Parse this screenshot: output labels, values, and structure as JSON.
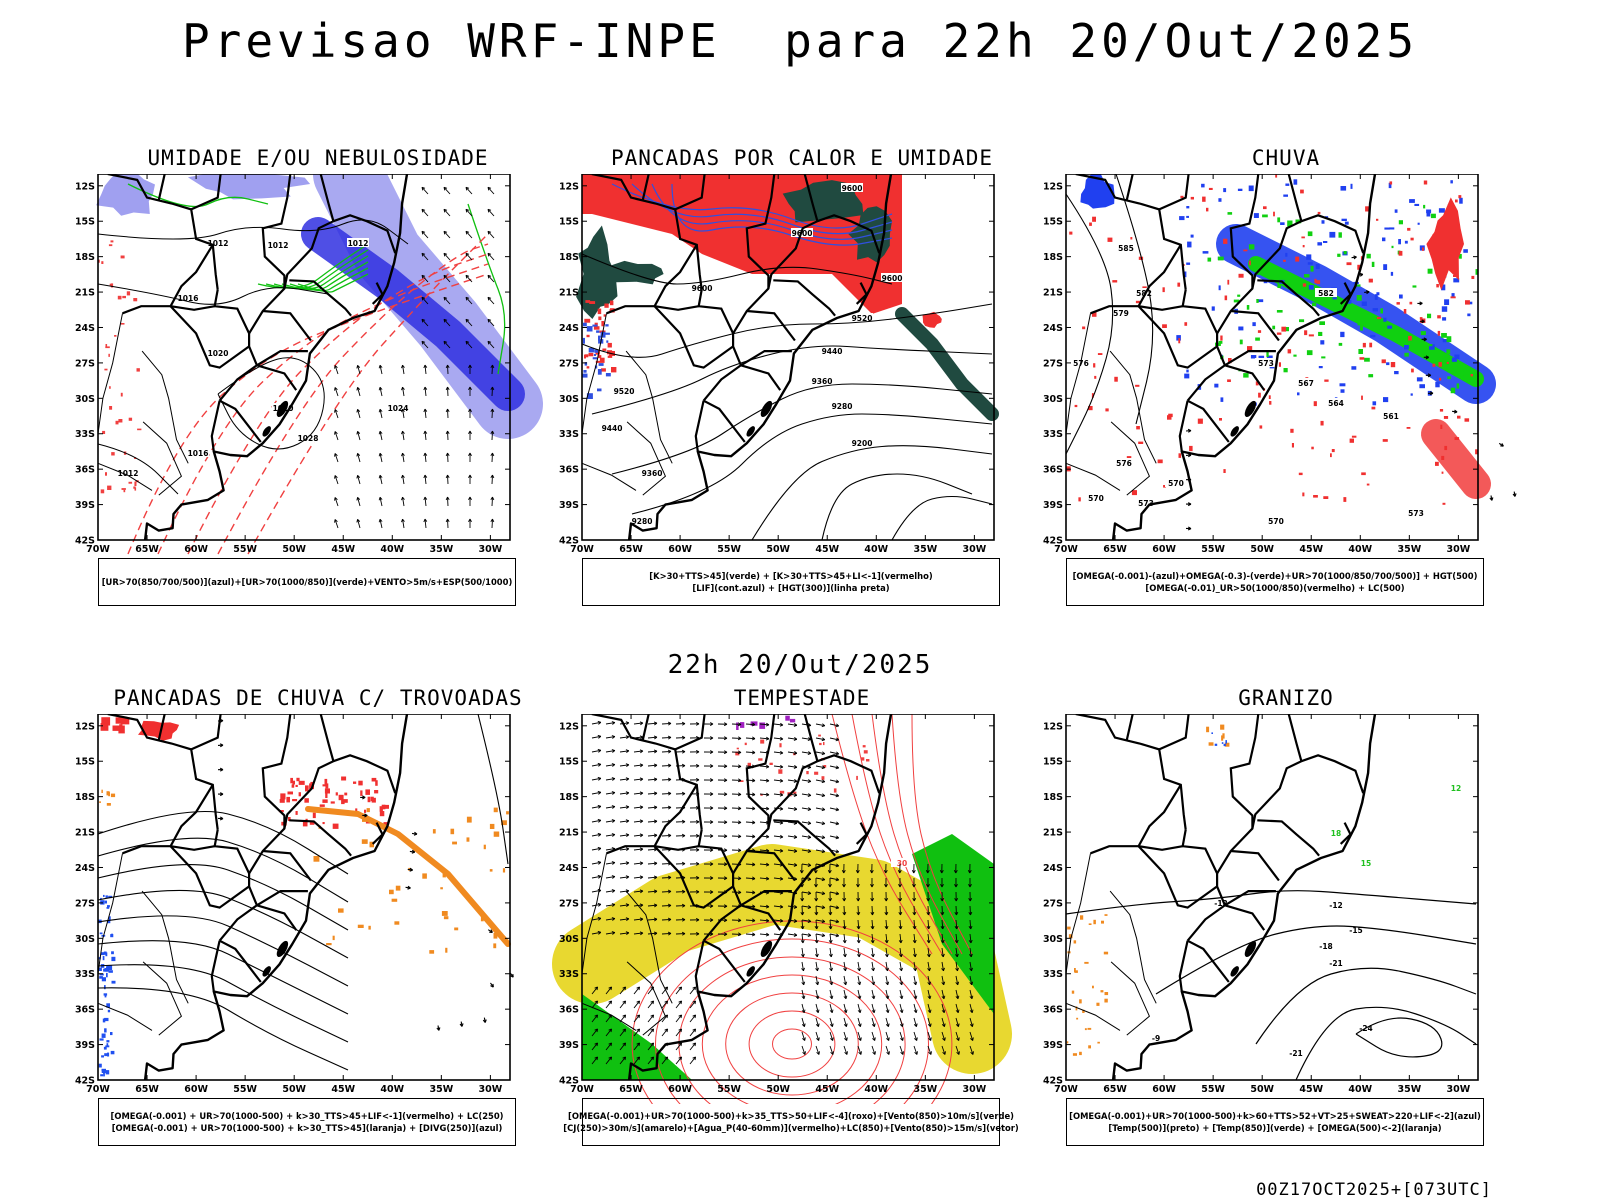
{
  "title": "Previsao WRF-INPE  para 22h 20/Out/2025",
  "subtitle": "22h 20/Out/2025",
  "footer": "00Z17OCT2025+[073UTC]",
  "axes": {
    "lat_labels": [
      "12S",
      "15S",
      "18S",
      "21S",
      "24S",
      "27S",
      "30S",
      "33S",
      "36S",
      "39S",
      "42S"
    ],
    "lon_labels": [
      "70W",
      "65W",
      "60W",
      "55W",
      "50W",
      "45W",
      "40W",
      "35W",
      "30W"
    ]
  },
  "panels": [
    {
      "id": "umidade",
      "title": "UMIDADE E/OU NEBULOSIDADE",
      "legend": [
        "[UR>70(850/700/500)](azul)+[UR>70(1000/850)](verde)+VENTO>5m/s+ESP(500/1000)"
      ],
      "contour_labels": [
        "1012",
        "1012",
        "1012",
        "1016",
        "1020",
        "1020",
        "1024",
        "1028",
        "1016",
        "1012"
      ],
      "colors": {
        "primary": "#3030e0",
        "light": "#a0a0f0",
        "green": "#10c010",
        "red": "#f04040"
      }
    },
    {
      "id": "pancadas-calor",
      "title": "PANCADAS POR CALOR E UMIDADE",
      "legend": [
        "[K>30+TTS>45](verde) + [K>30+TTS>45+LI<-1](vermelho)",
        "[LIF](cont.azul) + [HGT(300)](linha preta)"
      ],
      "contour_labels": [
        "9600",
        "9600",
        "9600",
        "9520",
        "9440",
        "9360",
        "9280",
        "9200",
        "9520",
        "9440",
        "9360",
        "9280",
        "9600"
      ],
      "colors": {
        "red": "#f03030",
        "darkgreen": "#204a40",
        "blue": "#3050e0"
      }
    },
    {
      "id": "chuva",
      "title": "CHUVA",
      "legend": [
        "[OMEGA(-0.001)-(azul)+OMEGA(-0.3)-(verde)+UR>70(1000/850/700/500)] + HGT(500)",
        "[OMEGA(-0.01)_UR>50(1000/850)(vermelho) + LC(500)"
      ],
      "contour_labels": [
        "585",
        "582",
        "579",
        "576",
        "573",
        "570",
        "567",
        "564",
        "561",
        "576",
        "570",
        "573",
        "570",
        "582",
        "573"
      ],
      "colors": {
        "blue": "#2040f0",
        "green": "#10d010",
        "red": "#f03030"
      }
    },
    {
      "id": "pancadas-trovoadas",
      "title": "PANCADAS DE CHUVA C/ TROVOADAS",
      "legend": [
        "[OMEGA(-0.001) + UR>70(1000-500) + k>30_TTS>45+LIF<-1](vermelho) + LC(250)",
        "[OMEGA(-0.001) + UR>70(1000-500) + k>30_TTS>45](laranja) + [DIVG(250)](azul)"
      ],
      "contour_labels": [],
      "colors": {
        "red": "#f03030",
        "orange": "#f08a20",
        "blue": "#2050f0"
      }
    },
    {
      "id": "tempestade",
      "title": "TEMPESTADE",
      "legend": [
        "[OMEGA(-0.001)+UR>70(1000-500)+k>35_TTS>50+LIF<-4](roxo)+[Vento(850)>10m/s](verde)",
        "[CJ(250)>30m/s](amarelo)+[Agua_P(40-60mm)](vermelho)+LC(850)+[Vento(850)>15m/s](vetor)"
      ],
      "contour_labels": [
        "30"
      ],
      "colors": {
        "yellow": "#e8d830",
        "green": "#10c010",
        "red": "#f04040",
        "purple": "#a020c0"
      }
    },
    {
      "id": "granizo",
      "title": "GRANIZO",
      "legend": [
        "[OMEGA(-0.001)+UR>70(1000-500)+k>60+TTS>52+VT>25+SWEAT>220+LIF<-2](azul)",
        "[Temp(500)](preto) + [Temp(850)](verde) + [OMEGA(500)<-2](laranja)"
      ],
      "contour_labels": [
        "-12",
        "-12",
        "-15",
        "-18",
        "-21",
        "-24",
        "-21",
        "-9",
        "18",
        "15",
        "12"
      ],
      "colors": {
        "green": "#20c020",
        "orange": "#f08a20",
        "blue": "#2050f0"
      }
    }
  ]
}
